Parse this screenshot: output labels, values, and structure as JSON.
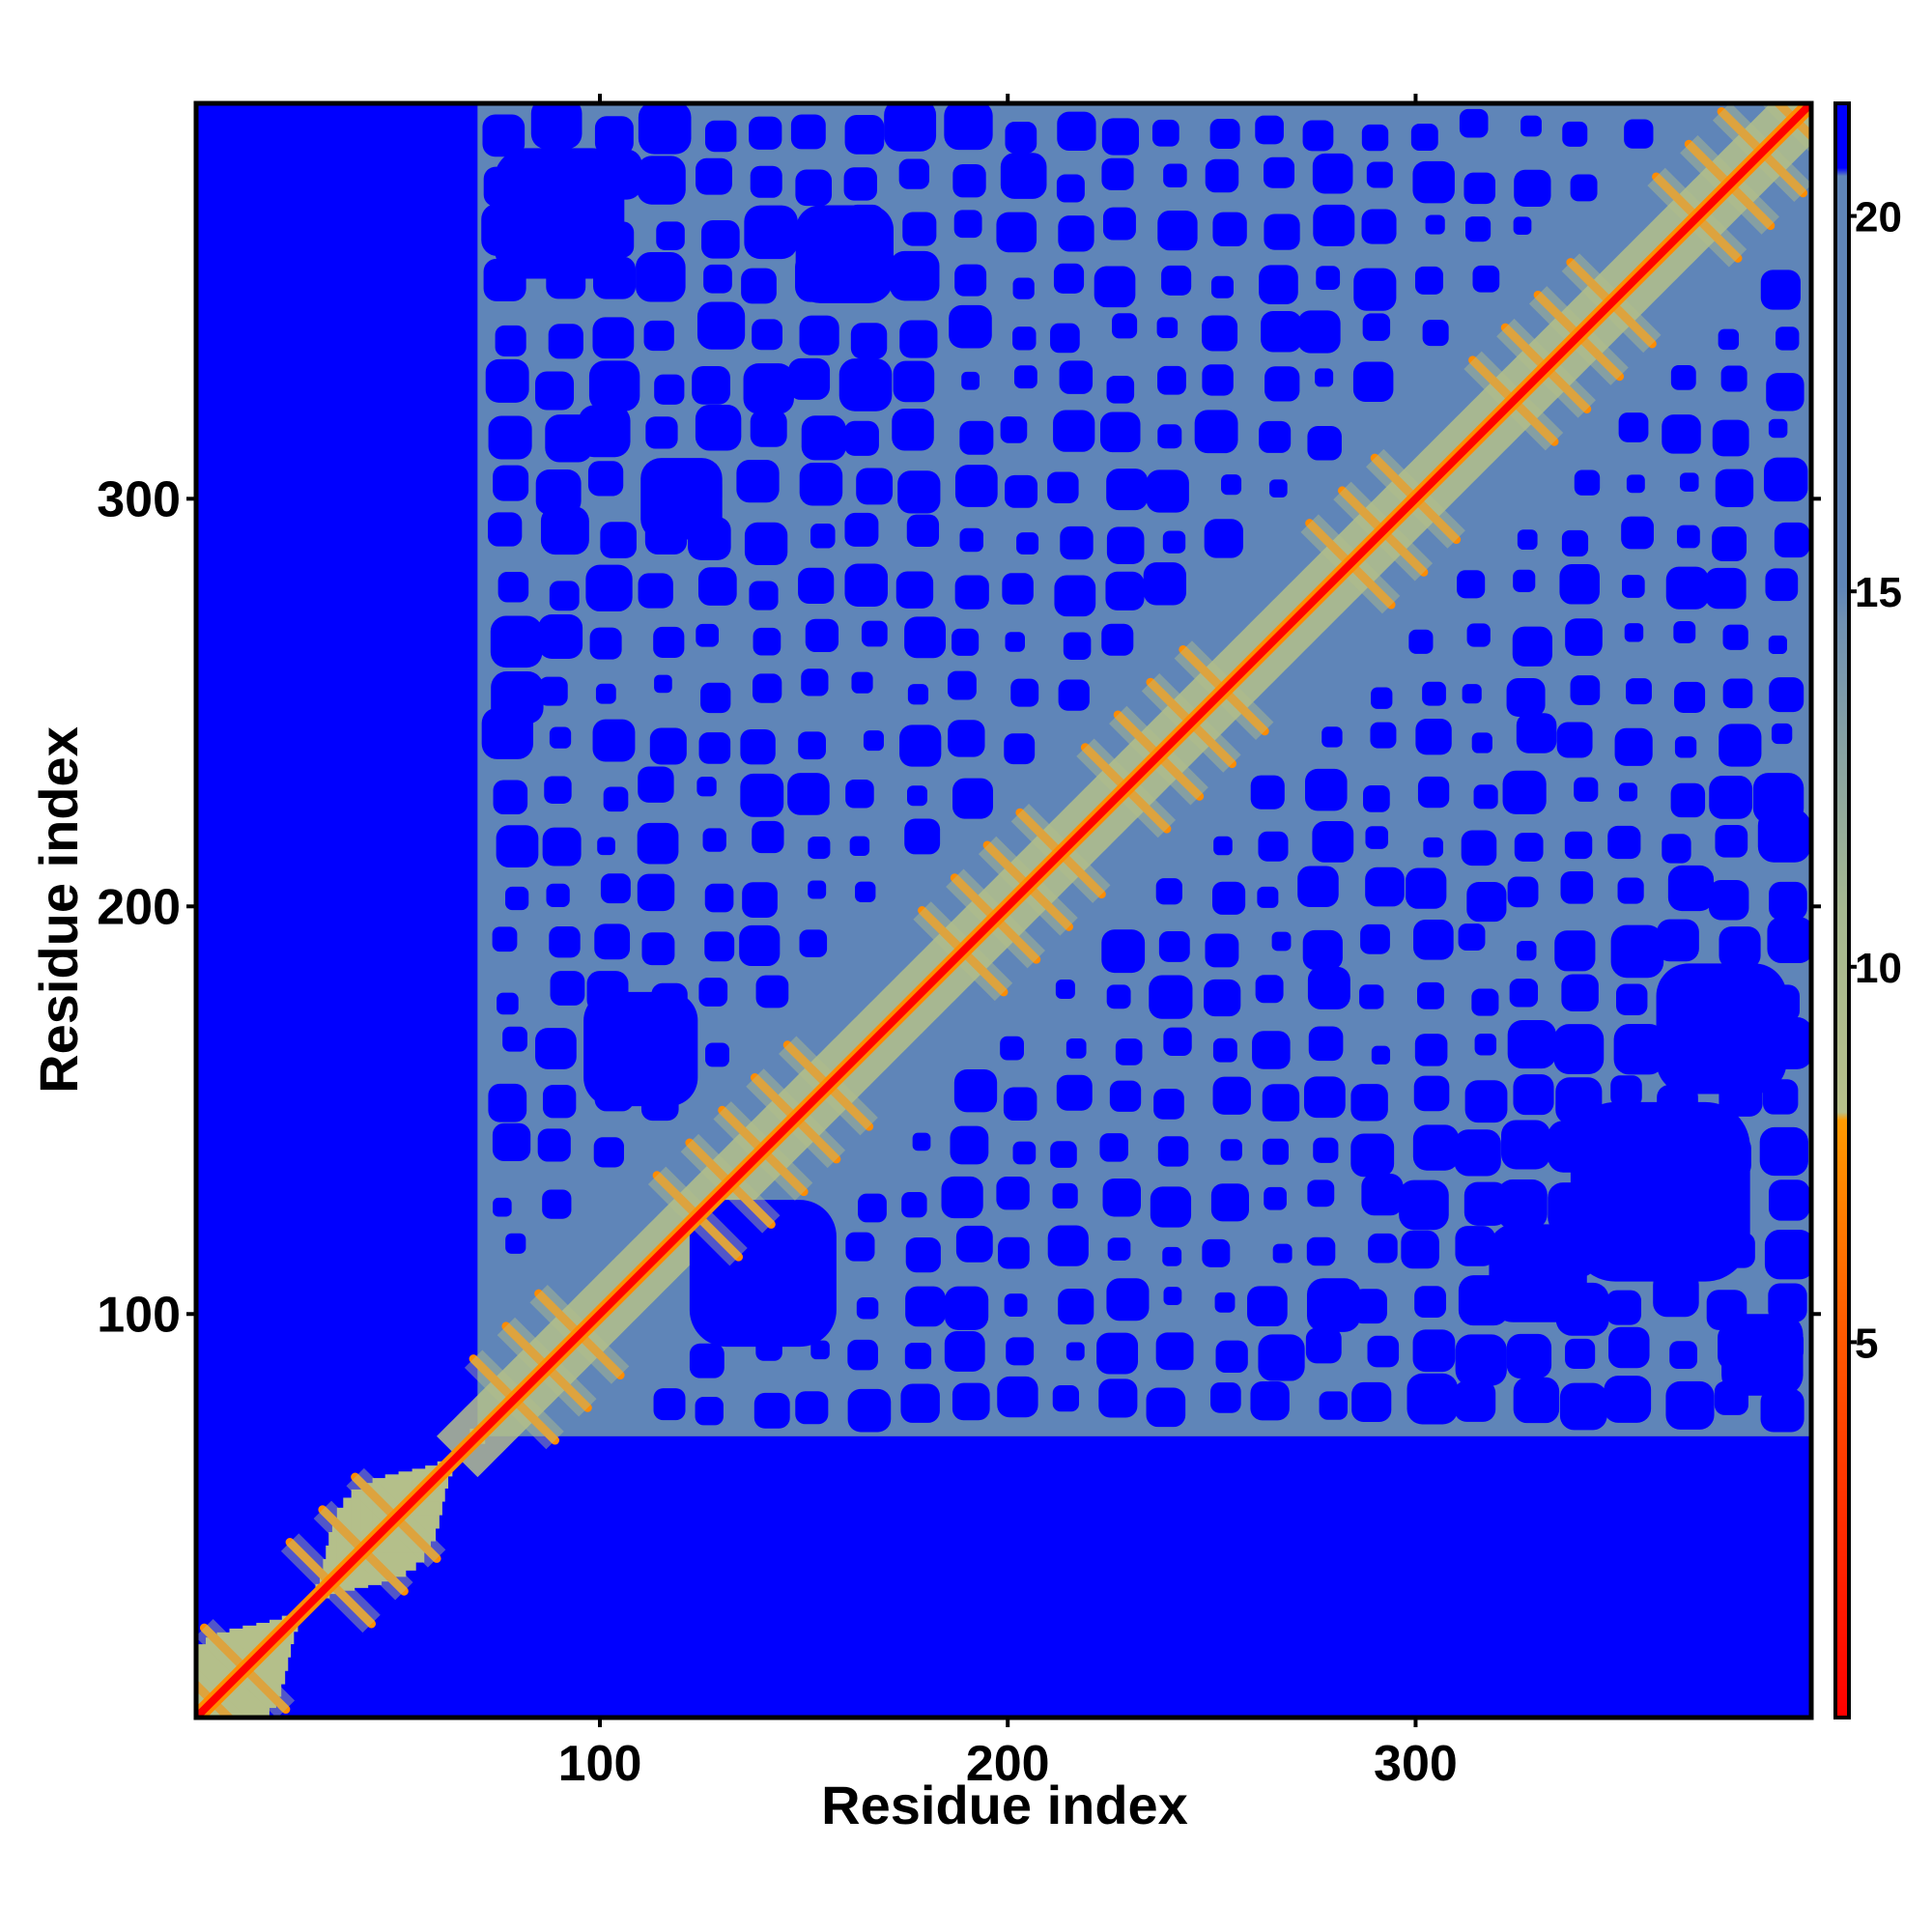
{
  "chart_data": {
    "type": "heatmap",
    "title": "",
    "xlabel": "Residue index",
    "ylabel": "Residue index",
    "xlim": [
      1,
      397
    ],
    "ylim": [
      1,
      397
    ],
    "x_ticks": [
      {
        "value": 100,
        "label": "100"
      },
      {
        "value": 200,
        "label": "200"
      },
      {
        "value": 300,
        "label": "300"
      }
    ],
    "y_ticks": [
      {
        "value": 100,
        "label": "100"
      },
      {
        "value": 200,
        "label": "200"
      },
      {
        "value": 300,
        "label": "300"
      }
    ],
    "colorbar": {
      "range": [
        0,
        21.5
      ],
      "ticks": [
        {
          "value": 5,
          "label": "5"
        },
        {
          "value": 10,
          "label": "10"
        },
        {
          "value": 15,
          "label": "15"
        },
        {
          "value": 20,
          "label": "20"
        }
      ],
      "colors": {
        "contact": "#ff0000",
        "near": "#ff8c00",
        "mid": "#b4bf8a",
        "far": "#5f85b8",
        "background": "#0000ff"
      }
    },
    "structure": {
      "ordered_region": [
        70,
        397
      ],
      "disordered_region": [
        1,
        70
      ],
      "helix_blocks": [
        {
          "start": 1,
          "end": 20
        },
        {
          "start": 30,
          "end": 55
        },
        {
          "start": 75,
          "end": 100
        },
        {
          "start": 120,
          "end": 160
        },
        {
          "start": 185,
          "end": 215
        },
        {
          "start": 225,
          "end": 255
        },
        {
          "start": 280,
          "end": 305
        },
        {
          "start": 320,
          "end": 350
        },
        {
          "start": 365,
          "end": 397
        }
      ]
    }
  }
}
